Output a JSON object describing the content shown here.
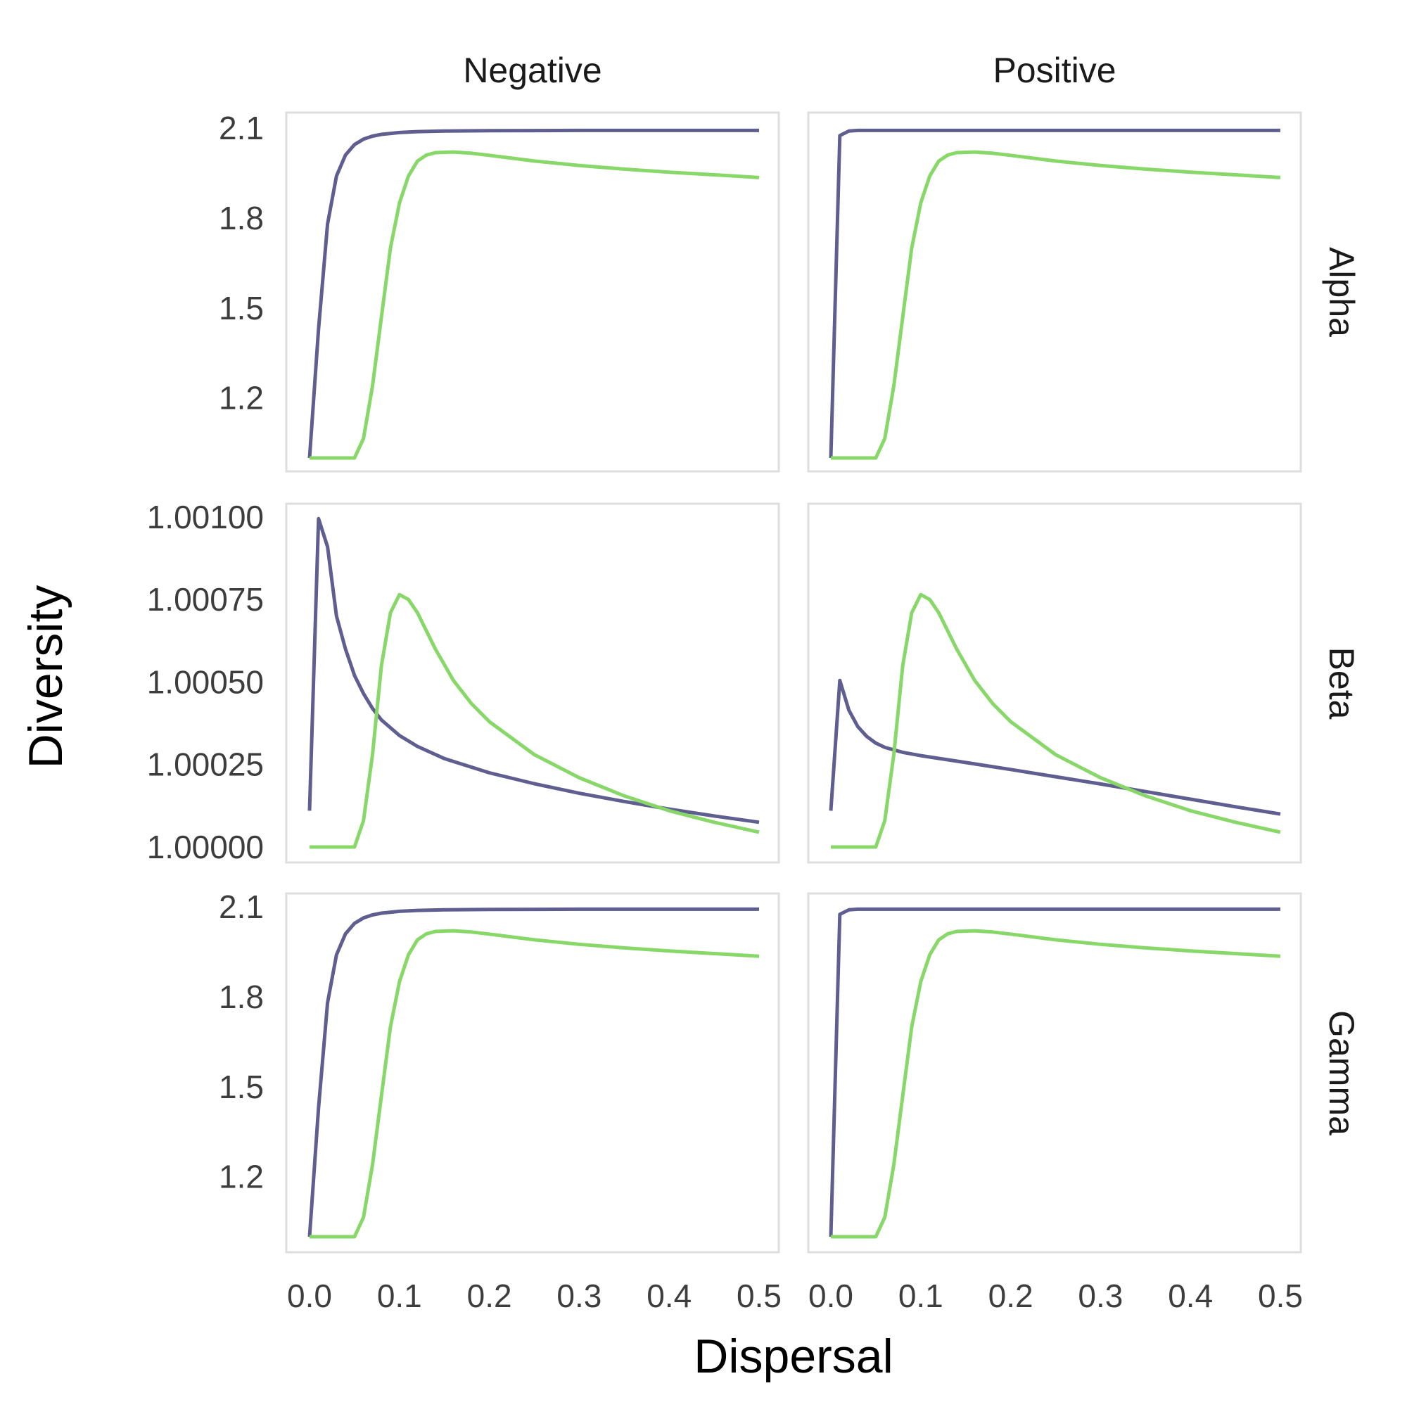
{
  "chart_data": {
    "type": "line",
    "facet_columns": [
      "Negative",
      "Positive"
    ],
    "facet_rows": [
      "Alpha",
      "Beta",
      "Gamma"
    ],
    "xlabel": "Dispersal",
    "ylabel": "Diversity",
    "xlim": [
      0,
      0.5
    ],
    "x_ticks": [
      0.0,
      0.1,
      0.2,
      0.3,
      0.4,
      0.5
    ],
    "x_tick_labels": [
      "0.0",
      "0.1",
      "0.2",
      "0.3",
      "0.4",
      "0.5"
    ],
    "grid": false,
    "legend": "none",
    "colors": {
      "series_a": "#5c5b8e",
      "series_b": "#86d766"
    },
    "rows": {
      "Alpha": {
        "ylim": [
          1.0,
          2.1
        ],
        "y_ticks": [
          1.2,
          1.5,
          1.8,
          2.1
        ],
        "y_tick_labels": [
          "1.2",
          "1.5",
          "1.8",
          "2.1"
        ]
      },
      "Beta": {
        "ylim": [
          1.0,
          1.001
        ],
        "y_ticks": [
          1.0,
          1.00025,
          1.0005,
          1.00075,
          1.001
        ],
        "y_tick_labels": [
          "1.00000",
          "1.00025",
          "1.00050",
          "1.00075",
          "1.00100"
        ]
      },
      "Gamma": {
        "ylim": [
          1.0,
          2.1
        ],
        "y_ticks": [
          1.2,
          1.5,
          1.8,
          2.1
        ],
        "y_tick_labels": [
          "1.2",
          "1.5",
          "1.8",
          "2.1"
        ]
      }
    },
    "panels": [
      {
        "row": "Alpha",
        "col": "Negative",
        "series": [
          {
            "color": "#5c5b8e",
            "x": [
              0,
              0.01,
              0.02,
              0.03,
              0.04,
              0.05,
              0.06,
              0.07,
              0.08,
              0.1,
              0.12,
              0.15,
              0.2,
              0.3,
              0.4,
              0.5
            ],
            "y": [
              1.0,
              1.43,
              1.78,
              1.94,
              2.01,
              2.045,
              2.063,
              2.073,
              2.079,
              2.085,
              2.088,
              2.09,
              2.091,
              2.092,
              2.092,
              2.092
            ]
          },
          {
            "color": "#86d766",
            "x": [
              0,
              0.02,
              0.04,
              0.05,
              0.06,
              0.07,
              0.08,
              0.09,
              0.1,
              0.11,
              0.12,
              0.13,
              0.14,
              0.16,
              0.18,
              0.2,
              0.25,
              0.3,
              0.35,
              0.4,
              0.45,
              0.5
            ],
            "y": [
              1.0,
              1.0,
              1.0,
              1.0,
              1.065,
              1.24,
              1.47,
              1.7,
              1.85,
              1.94,
              1.99,
              2.01,
              2.018,
              2.02,
              2.016,
              2.009,
              1.99,
              1.975,
              1.963,
              1.953,
              1.944,
              1.935
            ]
          }
        ]
      },
      {
        "row": "Alpha",
        "col": "Positive",
        "series": [
          {
            "color": "#5c5b8e",
            "x": [
              0,
              0.01,
              0.02,
              0.03,
              0.05,
              0.1,
              0.2,
              0.3,
              0.4,
              0.5
            ],
            "y": [
              1.0,
              2.075,
              2.09,
              2.092,
              2.092,
              2.092,
              2.092,
              2.092,
              2.092,
              2.092
            ]
          },
          {
            "color": "#86d766",
            "x": [
              0,
              0.02,
              0.04,
              0.05,
              0.06,
              0.07,
              0.08,
              0.09,
              0.1,
              0.11,
              0.12,
              0.13,
              0.14,
              0.16,
              0.18,
              0.2,
              0.25,
              0.3,
              0.35,
              0.4,
              0.45,
              0.5
            ],
            "y": [
              1.0,
              1.0,
              1.0,
              1.0,
              1.065,
              1.24,
              1.47,
              1.7,
              1.85,
              1.94,
              1.99,
              2.01,
              2.018,
              2.02,
              2.016,
              2.009,
              1.99,
              1.975,
              1.963,
              1.953,
              1.944,
              1.935
            ]
          }
        ]
      },
      {
        "row": "Beta",
        "col": "Negative",
        "series": [
          {
            "color": "#5c5b8e",
            "x": [
              0,
              0.01,
              0.02,
              0.03,
              0.04,
              0.05,
              0.06,
              0.07,
              0.08,
              0.1,
              0.12,
              0.15,
              0.2,
              0.25,
              0.3,
              0.35,
              0.4,
              0.45,
              0.5
            ],
            "y": [
              1.00011,
              1.000995,
              1.00091,
              1.0007,
              1.0006,
              1.00052,
              1.000465,
              1.00042,
              1.000385,
              1.000338,
              1.000305,
              1.000268,
              1.000225,
              1.000192,
              1.000163,
              1.000138,
              1.000115,
              1.000094,
              1.000075
            ]
          },
          {
            "color": "#86d766",
            "x": [
              0,
              0.02,
              0.04,
              0.05,
              0.06,
              0.07,
              0.08,
              0.09,
              0.1,
              0.11,
              0.12,
              0.14,
              0.16,
              0.18,
              0.2,
              0.25,
              0.3,
              0.35,
              0.4,
              0.45,
              0.5
            ],
            "y": [
              1.0,
              1.0,
              1.0,
              1.0,
              1.00008,
              1.00028,
              1.00055,
              1.00071,
              1.000765,
              1.00075,
              1.00071,
              1.0006,
              1.000505,
              1.000435,
              1.00038,
              1.00028,
              1.00021,
              1.000155,
              1.00011,
              1.000075,
              1.000045
            ]
          }
        ]
      },
      {
        "row": "Beta",
        "col": "Positive",
        "series": [
          {
            "color": "#5c5b8e",
            "x": [
              0,
              0.01,
              0.02,
              0.03,
              0.04,
              0.05,
              0.06,
              0.08,
              0.1,
              0.15,
              0.2,
              0.25,
              0.3,
              0.35,
              0.4,
              0.45,
              0.5
            ],
            "y": [
              1.00011,
              1.000505,
              1.000415,
              1.000365,
              1.000335,
              1.000315,
              1.000302,
              1.000287,
              1.000277,
              1.000256,
              1.000235,
              1.000213,
              1.000191,
              1.000168,
              1.000145,
              1.000122,
              1.0001
            ]
          },
          {
            "color": "#86d766",
            "x": [
              0,
              0.02,
              0.04,
              0.05,
              0.06,
              0.07,
              0.08,
              0.09,
              0.1,
              0.11,
              0.12,
              0.14,
              0.16,
              0.18,
              0.2,
              0.25,
              0.3,
              0.35,
              0.4,
              0.45,
              0.5
            ],
            "y": [
              1.0,
              1.0,
              1.0,
              1.0,
              1.00008,
              1.00028,
              1.00055,
              1.00071,
              1.000765,
              1.00075,
              1.00071,
              1.0006,
              1.000505,
              1.000435,
              1.00038,
              1.00028,
              1.00021,
              1.000155,
              1.00011,
              1.000075,
              1.000045
            ]
          }
        ]
      },
      {
        "row": "Gamma",
        "col": "Negative",
        "series": [
          {
            "color": "#5c5b8e",
            "x": [
              0,
              0.01,
              0.02,
              0.03,
              0.04,
              0.05,
              0.06,
              0.07,
              0.08,
              0.1,
              0.12,
              0.15,
              0.2,
              0.3,
              0.4,
              0.5
            ],
            "y": [
              1.0,
              1.43,
              1.78,
              1.94,
              2.01,
              2.045,
              2.063,
              2.073,
              2.079,
              2.085,
              2.088,
              2.09,
              2.091,
              2.092,
              2.092,
              2.092
            ]
          },
          {
            "color": "#86d766",
            "x": [
              0,
              0.02,
              0.04,
              0.05,
              0.06,
              0.07,
              0.08,
              0.09,
              0.1,
              0.11,
              0.12,
              0.13,
              0.14,
              0.16,
              0.18,
              0.2,
              0.25,
              0.3,
              0.35,
              0.4,
              0.45,
              0.5
            ],
            "y": [
              1.0,
              1.0,
              1.0,
              1.0,
              1.065,
              1.24,
              1.47,
              1.7,
              1.85,
              1.94,
              1.99,
              2.01,
              2.018,
              2.02,
              2.016,
              2.009,
              1.99,
              1.975,
              1.963,
              1.953,
              1.944,
              1.935
            ]
          }
        ]
      },
      {
        "row": "Gamma",
        "col": "Positive",
        "series": [
          {
            "color": "#5c5b8e",
            "x": [
              0,
              0.01,
              0.02,
              0.03,
              0.05,
              0.1,
              0.2,
              0.3,
              0.4,
              0.5
            ],
            "y": [
              1.0,
              2.075,
              2.09,
              2.092,
              2.092,
              2.092,
              2.092,
              2.092,
              2.092,
              2.092
            ]
          },
          {
            "color": "#86d766",
            "x": [
              0,
              0.02,
              0.04,
              0.05,
              0.06,
              0.07,
              0.08,
              0.09,
              0.1,
              0.11,
              0.12,
              0.13,
              0.14,
              0.16,
              0.18,
              0.2,
              0.25,
              0.3,
              0.35,
              0.4,
              0.45,
              0.5
            ],
            "y": [
              1.0,
              1.0,
              1.0,
              1.0,
              1.065,
              1.24,
              1.47,
              1.7,
              1.85,
              1.94,
              1.99,
              2.01,
              2.018,
              2.02,
              2.016,
              2.009,
              1.99,
              1.975,
              1.963,
              1.953,
              1.944,
              1.935
            ]
          }
        ]
      }
    ]
  }
}
